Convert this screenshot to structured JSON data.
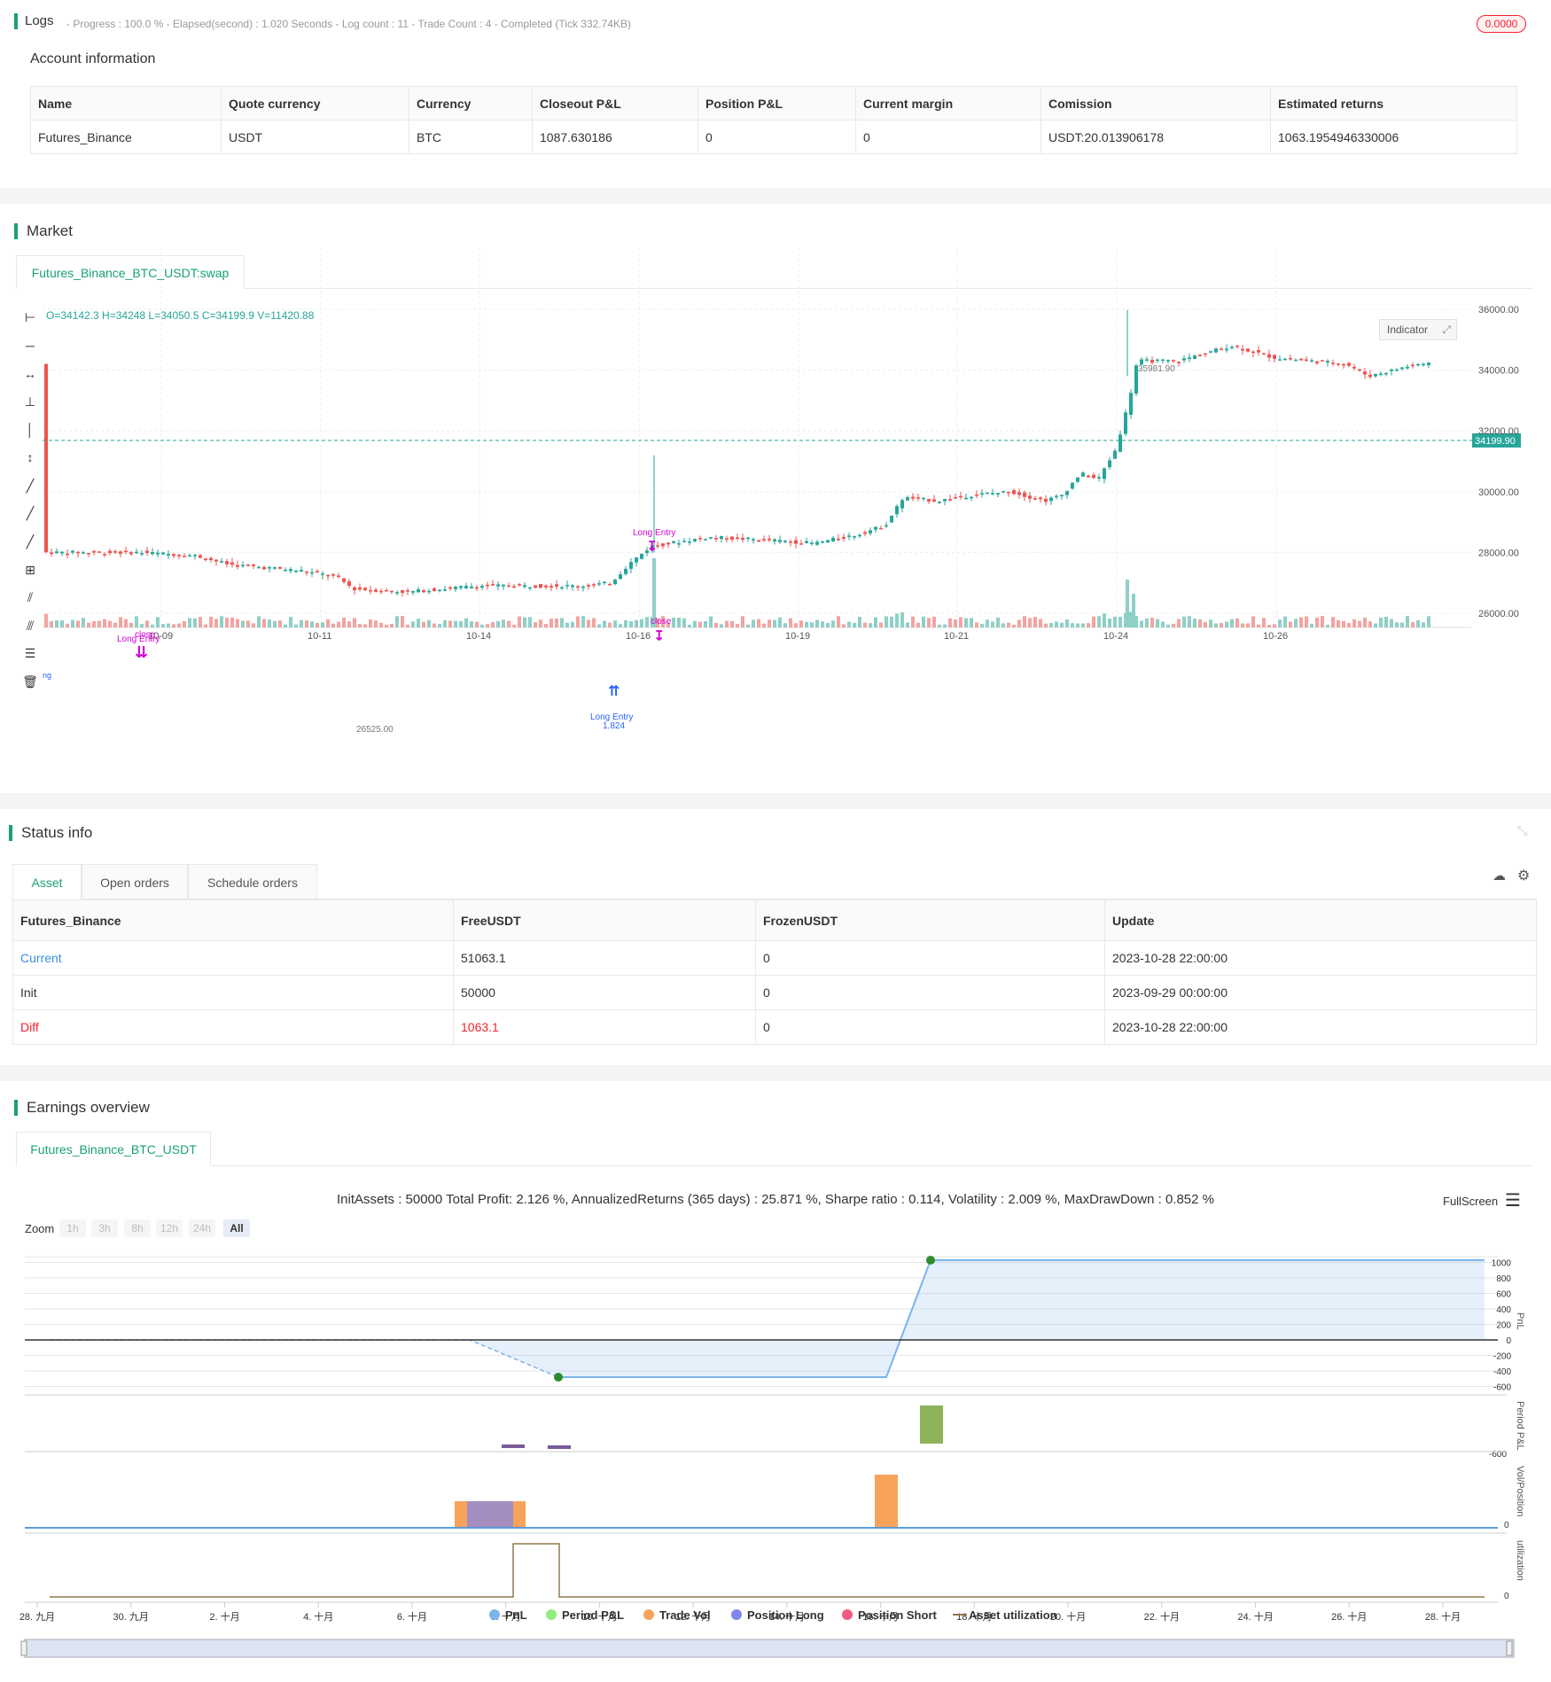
{
  "logs": {
    "title": "Logs",
    "summary": "- Progress : 100.0 % - Elapsed(second) : 1.020  Seconds - Log count : 11 - Trade Count : 4 - Completed (Tick 332.74KB)",
    "badge": "0.0000"
  },
  "account": {
    "title": "Account information",
    "headers": [
      "Name",
      "Quote currency",
      "Currency",
      "Closeout P&L",
      "Position P&L",
      "Current margin",
      "Comission",
      "Estimated returns"
    ],
    "row": [
      "Futures_Binance",
      "USDT",
      "BTC",
      "1087.630186",
      "0",
      "0",
      "USDT:20.013906178",
      "1063.1954946330006"
    ]
  },
  "market": {
    "title": "Market",
    "tab": "Futures_Binance_BTC_USDT:swap",
    "ohlc": "O=34142.3 H=34248 L=34050.5 C=34199.9 V=11420.88",
    "indicator_button": "Indicator",
    "price_tag": "34199.90",
    "high_label": "35981.90",
    "low_label": "26525.00",
    "y_ticks": [
      "36000.00",
      "34000.00",
      "32000.00",
      "30000.00",
      "28000.00",
      "26000.00"
    ],
    "x_ticks": [
      "10-09",
      "10-11",
      "10-14",
      "10-16",
      "10-19",
      "10-21",
      "10-24",
      "10-26"
    ],
    "annotations": [
      "Long Entry",
      "close",
      "Long Entry",
      "close",
      "Long Entry",
      "1.824",
      "ng"
    ]
  },
  "status": {
    "title": "Status info",
    "tabs": [
      "Asset",
      "Open orders",
      "Schedule orders"
    ],
    "headers": [
      "Futures_Binance",
      "FreeUSDT",
      "FrozenUSDT",
      "Update"
    ],
    "rows": [
      [
        "Current",
        "51063.1",
        "0",
        "2023-10-28 22:00:00"
      ],
      [
        "Init",
        "50000",
        "0",
        "2023-09-29 00:00:00"
      ],
      [
        "Diff",
        "1063.1",
        "0",
        "2023-10-28 22:00:00"
      ]
    ],
    "colors": {
      "current": "#3a8ee6",
      "diff": "#f5222d"
    }
  },
  "earnings": {
    "title": "Earnings overview",
    "tab": "Futures_Binance_BTC_USDT",
    "summary": "InitAssets : 50000 Total Profit: 2.126 %, AnnualizedReturns (365 days) : 25.871 %, Sharpe ratio : 0.114, Volatility : 2.009 %, MaxDrawDown : 0.852 %",
    "fullscreen": "FullScreen",
    "zoom_label": "Zoom",
    "zoom_buttons": [
      "1h",
      "3h",
      "8h",
      "12h",
      "24h",
      "All"
    ],
    "pnl_ticks": [
      "1000",
      "800",
      "600",
      "400",
      "200",
      "0",
      "-200",
      "-400",
      "-600"
    ],
    "period_tick": "-600",
    "vol_tick": "0",
    "util_tick": "0",
    "axis_titles": [
      "PnL",
      "Period P&L",
      "Vol/Position",
      "utilization"
    ],
    "x_ticks": [
      "28. 九月",
      "30. 九月",
      "2. 十月",
      "4. 十月",
      "6. 十月",
      "8. 十月",
      "10. 十月",
      "12. 十月",
      "14. 十月",
      "16. 十月",
      "18. 十月",
      "20. 十月",
      "22. 十月",
      "24. 十月",
      "26. 十月",
      "28. 十月"
    ],
    "legend": [
      {
        "label": "PnL",
        "color": "#7cb5ec"
      },
      {
        "label": "Period P&L",
        "color": "#90ed7d"
      },
      {
        "label": "Trade Vol",
        "color": "#f7a35c"
      },
      {
        "label": "Position Long",
        "color": "#8085e9"
      },
      {
        "label": "Position Short",
        "color": "#f15c80"
      },
      {
        "label": "Asset utilization",
        "color": "#8d7a4e"
      }
    ],
    "pnl_series": {
      "start": 0,
      "dip": -600,
      "end": 1063.1
    }
  }
}
